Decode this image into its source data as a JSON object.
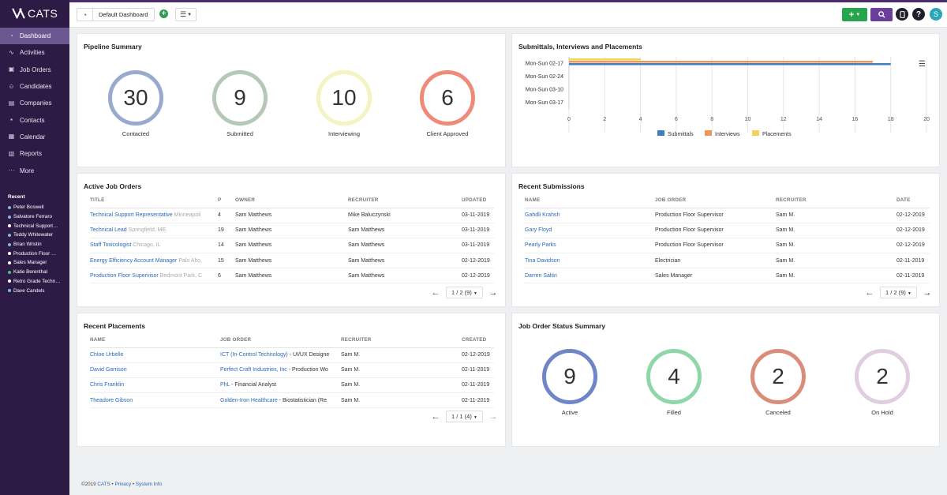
{
  "app": {
    "name": "CATS"
  },
  "topbar": {
    "dashboard_name": "Default Dashboard",
    "avatar_letter": "S"
  },
  "nav": [
    {
      "label": "Dashboard",
      "icon": "gauge-icon",
      "glyph": "◔",
      "active": true
    },
    {
      "label": "Activities",
      "icon": "activity-icon",
      "glyph": "∿",
      "active": false
    },
    {
      "label": "Job Orders",
      "icon": "briefcase-icon",
      "glyph": "▣",
      "active": false
    },
    {
      "label": "Candidates",
      "icon": "users-icon",
      "glyph": "☺",
      "active": false
    },
    {
      "label": "Companies",
      "icon": "building-icon",
      "glyph": "▤",
      "active": false
    },
    {
      "label": "Contacts",
      "icon": "contact-card-icon",
      "glyph": "▪",
      "active": false
    },
    {
      "label": "Calendar",
      "icon": "calendar-icon",
      "glyph": "▦",
      "active": false
    },
    {
      "label": "Reports",
      "icon": "bar-chart-icon",
      "glyph": "▥",
      "active": false
    },
    {
      "label": "More",
      "icon": "ellipsis-icon",
      "glyph": "···",
      "active": false
    }
  ],
  "recent": {
    "title": "Recent",
    "items": [
      {
        "label": "Peter Boswell",
        "color": "#7fb3e6"
      },
      {
        "label": "Salvatore Ferraro",
        "color": "#7fb3e6"
      },
      {
        "label": "Technical Support…",
        "color": "#ffffff"
      },
      {
        "label": "Teddy Whitewater",
        "color": "#7fb3e6"
      },
      {
        "label": "Brian Wristin",
        "color": "#7fb3e6"
      },
      {
        "label": "Production Floor …",
        "color": "#ffffff"
      },
      {
        "label": "Sales Manager",
        "color": "#ffffff"
      },
      {
        "label": "Katie Berenthal",
        "color": "#41c08a"
      },
      {
        "label": "Retro Grade Techn…",
        "color": "#ffffff"
      },
      {
        "label": "Dave Candels",
        "color": "#7fb3e6"
      }
    ]
  },
  "pipeline": {
    "title": "Pipeline Summary",
    "rings": [
      {
        "value": "30",
        "label": "Contacted",
        "color": "#98aacd"
      },
      {
        "value": "9",
        "label": "Submitted",
        "color": "#b5c9b8"
      },
      {
        "value": "10",
        "label": "Interviewing",
        "color": "#f4f3c2"
      },
      {
        "value": "6",
        "label": "Client Approved",
        "color": "#ef8a78"
      }
    ]
  },
  "sip": {
    "title": "Submittals, Interviews and Placements"
  },
  "chart_data": {
    "type": "bar",
    "orientation": "horizontal",
    "categories": [
      "Mon-Sun 02-17",
      "Mon-Sun 02-24",
      "Mon-Sun 03-10",
      "Mon-Sun 03-17"
    ],
    "series": [
      {
        "name": "Submittals",
        "color": "#3f7fc0",
        "values": [
          18,
          0,
          0,
          0
        ]
      },
      {
        "name": "Interviews",
        "color": "#f0955b",
        "values": [
          17,
          0,
          0,
          0
        ]
      },
      {
        "name": "Placements",
        "color": "#f3d35a",
        "values": [
          4,
          0,
          0,
          0
        ]
      }
    ],
    "xlim": [
      0,
      20
    ],
    "xticks": [
      "0",
      "2",
      "4",
      "6",
      "8",
      "10",
      "12",
      "14",
      "16",
      "18",
      "20"
    ],
    "grid": true,
    "legend": "bottom",
    "title": "",
    "xlabel": "",
    "ylabel": ""
  },
  "active_jobs": {
    "title": "Active Job Orders",
    "columns": [
      "TITLE",
      "P",
      "OWNER",
      "RECRUITER",
      "UPDATED"
    ],
    "rows": [
      {
        "title": "Technical Support Representative",
        "location": "Minneapoli",
        "p": "4",
        "owner": "Sam Matthews",
        "recruiter": "Mike Baluczynski",
        "updated": "03-11-2019"
      },
      {
        "title": "Technical Lead",
        "location": "Springfield, ME",
        "p": "19",
        "owner": "Sam Matthews",
        "recruiter": "Sam Matthews",
        "updated": "03-11-2019"
      },
      {
        "title": "Staff Toxicologist",
        "location": "Chicago, IL",
        "p": "14",
        "owner": "Sam Matthews",
        "recruiter": "Sam Matthews",
        "updated": "03-11-2019"
      },
      {
        "title": "Energy Efficiency Account Manager",
        "location": "Palo Alto,",
        "p": "15",
        "owner": "Sam Matthews",
        "recruiter": "Sam Matthews",
        "updated": "02-12-2019"
      },
      {
        "title": "Production Floor Supervisor",
        "location": "Bedmont Park, C",
        "p": "6",
        "owner": "Sam Matthews",
        "recruiter": "Sam Matthews",
        "updated": "02-12-2019"
      }
    ],
    "pager": "1 / 2 (9)"
  },
  "recent_submissions": {
    "title": "Recent Submissions",
    "columns": [
      "NAME",
      "JOB ORDER",
      "RECRUITER",
      "DATE"
    ],
    "rows": [
      {
        "name": "Gahdli Krahsh",
        "job": "Production Floor Supervisor",
        "recruiter": "Sam M.",
        "date": "02-12-2019"
      },
      {
        "name": "Gary Floyd",
        "job": "Production Floor Supervisor",
        "recruiter": "Sam M.",
        "date": "02-12-2019"
      },
      {
        "name": "Pearly Parks",
        "job": "Production Floor Supervisor",
        "recruiter": "Sam M.",
        "date": "02-12-2019"
      },
      {
        "name": "Tina Davidson",
        "job": "Electrician",
        "recruiter": "Sam M.",
        "date": "02-11-2019"
      },
      {
        "name": "Darren Saltin",
        "job": "Sales Manager",
        "recruiter": "Sam M.",
        "date": "02-11-2019"
      }
    ],
    "pager": "1 / 2 (9)"
  },
  "recent_placements": {
    "title": "Recent Placements",
    "columns": [
      "NAME",
      "JOB ORDER",
      "RECRUITER",
      "CREATED"
    ],
    "rows": [
      {
        "name": "Chloe Urbelle",
        "company": "ICT (In-Control Technology)",
        "job": " - UI/UX Designe",
        "recruiter": "Sam M.",
        "created": "02-12-2019"
      },
      {
        "name": "David Garrison",
        "company": "Perfect Craft Industries, Inc",
        "job": " - Production Wo",
        "recruiter": "Sam M.",
        "created": "02-11-2019"
      },
      {
        "name": "Chris Franklin",
        "company": "PhL",
        "job": " - Financial Analyst",
        "recruiter": "Sam M.",
        "created": "02-11-2019"
      },
      {
        "name": "Theadore Gibson",
        "company": "Golden-Iron Healthcare",
        "job": " - Biostatistician (Re",
        "recruiter": "Sam M.",
        "created": "02-11-2019"
      }
    ],
    "pager": "1 / 1 (4)"
  },
  "job_status": {
    "title": "Job Order Status Summary",
    "rings": [
      {
        "value": "9",
        "label": "Active",
        "color": "#6e86c6"
      },
      {
        "value": "4",
        "label": "Filled",
        "color": "#8fd6a8"
      },
      {
        "value": "2",
        "label": "Canceled",
        "color": "#d98e7c"
      },
      {
        "value": "2",
        "label": "On Hold",
        "color": "#e0cde1"
      }
    ]
  },
  "footer": {
    "copyright": "©2019",
    "cats": "CATS",
    "sep": " • ",
    "privacy": "Privacy",
    "system": "System Info"
  }
}
